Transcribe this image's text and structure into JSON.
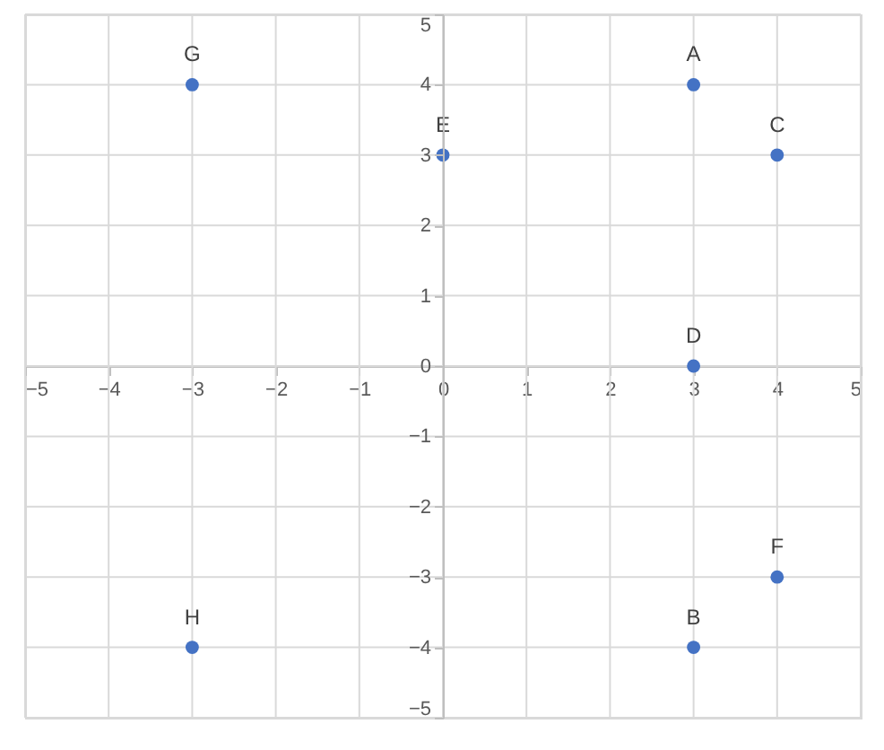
{
  "chart_data": {
    "type": "scatter",
    "x": [
      3,
      3,
      4,
      3,
      0,
      4,
      -3,
      -3
    ],
    "series": [
      {
        "color": "#4472c4",
        "values": [
          4,
          -4,
          3,
          0,
          3,
          -3,
          4,
          -4
        ]
      }
    ],
    "xlim": [
      -5,
      5
    ],
    "ylim": [
      -5,
      5
    ],
    "xticks": [
      -5,
      -4,
      -3,
      -2,
      -1,
      0,
      1,
      2,
      3,
      4,
      5
    ],
    "yticks": [
      -5,
      -4,
      -3,
      -2,
      -1,
      0,
      1,
      2,
      3,
      4,
      5
    ],
    "grid": true,
    "marker": "circle",
    "annotations": [
      {
        "text": "A",
        "x": 3,
        "y": 4
      },
      {
        "text": "B",
        "x": 3,
        "y": -4
      },
      {
        "text": "C",
        "x": 4,
        "y": 3
      },
      {
        "text": "D",
        "x": 3,
        "y": 0
      },
      {
        "text": "E",
        "x": 0,
        "y": 3
      },
      {
        "text": "F",
        "x": 4,
        "y": -3
      },
      {
        "text": "G",
        "x": -3,
        "y": 4
      },
      {
        "text": "H",
        "x": -3,
        "y": -4
      }
    ]
  }
}
